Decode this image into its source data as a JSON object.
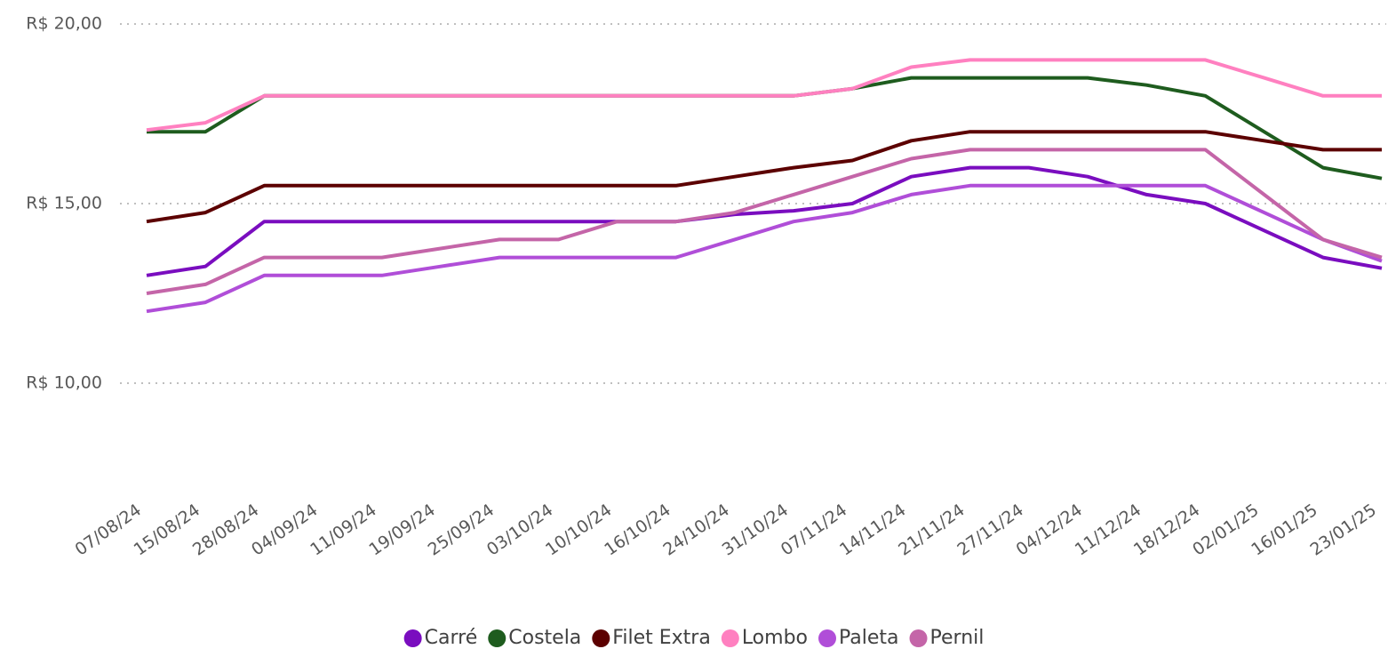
{
  "chart_data": {
    "type": "line",
    "categories": [
      "07/08/24",
      "15/08/24",
      "28/08/24",
      "04/09/24",
      "11/09/24",
      "19/09/24",
      "25/09/24",
      "03/10/24",
      "10/10/24",
      "16/10/24",
      "24/10/24",
      "31/10/24",
      "07/11/24",
      "14/11/24",
      "21/11/24",
      "27/11/24",
      "04/12/24",
      "11/12/24",
      "18/12/24",
      "02/01/25",
      "16/01/25",
      "23/01/25"
    ],
    "series": [
      {
        "name": "Carré",
        "color": "#7a0dbf",
        "values": [
          13.0,
          13.25,
          14.5,
          14.5,
          14.5,
          14.5,
          14.5,
          14.5,
          14.5,
          14.5,
          14.7,
          14.8,
          15.0,
          15.75,
          16.0,
          16.0,
          15.75,
          15.25,
          15.0,
          14.25,
          13.5,
          13.2
        ]
      },
      {
        "name": "Costela",
        "color": "#1e5c1e",
        "values": [
          17.0,
          17.0,
          18.0,
          18.0,
          18.0,
          18.0,
          18.0,
          18.0,
          18.0,
          18.0,
          18.0,
          18.0,
          18.2,
          18.5,
          18.5,
          18.5,
          18.5,
          18.3,
          18.0,
          17.0,
          16.0,
          15.7
        ]
      },
      {
        "name": "Filet Extra",
        "color": "#5c0000",
        "values": [
          14.5,
          14.75,
          15.5,
          15.5,
          15.5,
          15.5,
          15.5,
          15.5,
          15.5,
          15.5,
          15.75,
          16.0,
          16.2,
          16.75,
          17.0,
          17.0,
          17.0,
          17.0,
          17.0,
          16.75,
          16.5,
          16.5
        ]
      },
      {
        "name": "Lombo",
        "color": "#ff80c0",
        "values": [
          17.05,
          17.25,
          18.0,
          18.0,
          18.0,
          18.0,
          18.0,
          18.0,
          18.0,
          18.0,
          18.0,
          18.0,
          18.2,
          18.8,
          19.0,
          19.0,
          19.0,
          19.0,
          19.0,
          18.5,
          18.0,
          18.0
        ]
      },
      {
        "name": "Paleta",
        "color": "#b04ed8",
        "values": [
          12.0,
          12.25,
          13.0,
          13.0,
          13.0,
          13.25,
          13.5,
          13.5,
          13.5,
          13.5,
          14.0,
          14.5,
          14.75,
          15.25,
          15.5,
          15.5,
          15.5,
          15.5,
          15.5,
          14.75,
          14.0,
          13.4
        ]
      },
      {
        "name": "Pernil",
        "color": "#c465a8",
        "values": [
          12.5,
          12.75,
          13.5,
          13.5,
          13.5,
          13.75,
          14.0,
          14.0,
          14.5,
          14.5,
          14.75,
          15.25,
          15.75,
          16.25,
          16.5,
          16.5,
          16.5,
          16.5,
          16.5,
          15.25,
          14.0,
          13.5
        ]
      }
    ],
    "ylim": [
      7.5,
      20
    ],
    "yticks": [
      {
        "value": 10,
        "label": "R$ 10,00"
      },
      {
        "value": 15,
        "label": "R$ 15,00"
      },
      {
        "value": 20,
        "label": "R$ 20,00"
      }
    ],
    "grid": true,
    "legend": "bottom"
  }
}
